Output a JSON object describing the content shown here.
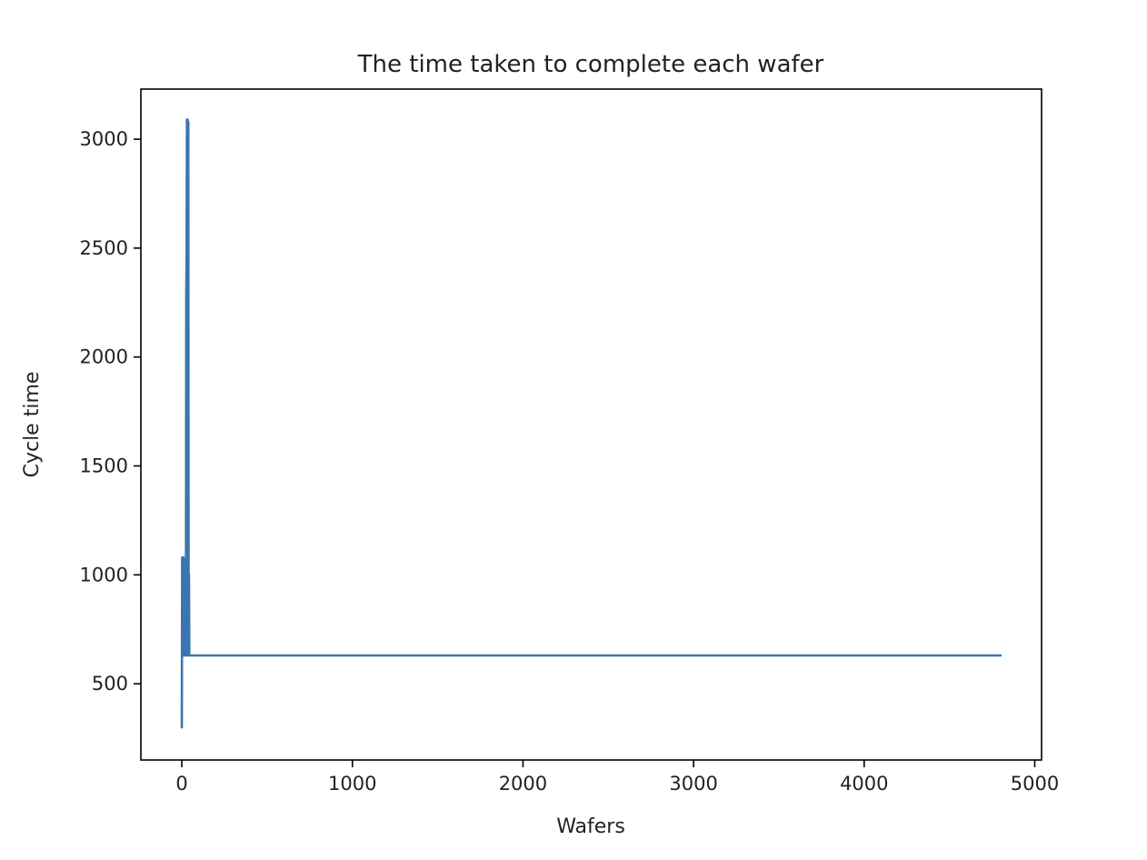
{
  "chart_data": {
    "type": "line",
    "title": "The time taken to complete each wafer",
    "xlabel": "Wafers",
    "ylabel": "Cycle time",
    "xlim": [
      -240,
      5040
    ],
    "ylim": [
      150,
      3230
    ],
    "x_ticks": [
      0,
      1000,
      2000,
      3000,
      4000,
      5000
    ],
    "x_tick_labels": [
      "0",
      "1000",
      "2000",
      "3000",
      "4000",
      "5000"
    ],
    "y_ticks": [
      500,
      1000,
      1500,
      2000,
      2500,
      3000
    ],
    "y_tick_labels": [
      "500",
      "1000",
      "1500",
      "2000",
      "2500",
      "3000"
    ],
    "grid": false,
    "series": [
      {
        "color": "#3b75af",
        "x": [
          0,
          2,
          4,
          6,
          8,
          10,
          12,
          14,
          16,
          18,
          20,
          22,
          24,
          26,
          28,
          30,
          32,
          34,
          36,
          38,
          40,
          42,
          44,
          46,
          48,
          50,
          60,
          100,
          500,
          1000,
          2000,
          3000,
          4000,
          4800
        ],
        "y": [
          300,
          1080,
          630,
          1080,
          630,
          1080,
          630,
          1070,
          630,
          1060,
          630,
          1050,
          630,
          2300,
          2450,
          3090,
          630,
          3090,
          630,
          3080,
          630,
          1000,
          630,
          630,
          630,
          630,
          630,
          630,
          630,
          630,
          630,
          630,
          630,
          630
        ]
      }
    ]
  },
  "colors": {
    "line": "#3b75af",
    "axes": "#000000",
    "text": "#222222",
    "background": "#ffffff"
  }
}
